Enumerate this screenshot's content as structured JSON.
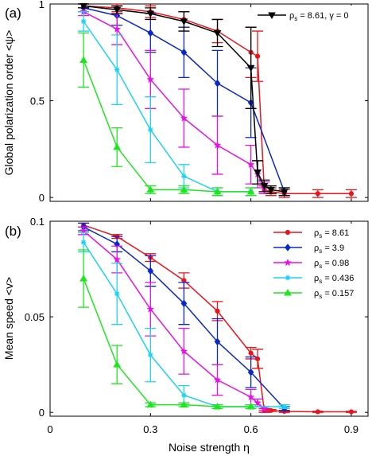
{
  "chart_data": [
    {
      "type": "line",
      "panel_label": "(a)",
      "ylabel": "Global polarization order <ψ>",
      "xlabel": "",
      "xlim": [
        0,
        0.95
      ],
      "ylim": [
        -0.02,
        1.0
      ],
      "xticks": [
        0,
        0.3,
        0.6,
        0.9
      ],
      "xtick_labels": [
        "",
        "",
        "",
        ""
      ],
      "yticks": [
        0,
        0.5,
        1
      ],
      "ytick_labels": [
        "0",
        "0.5",
        "1"
      ],
      "grid": false,
      "legend": {
        "position": "top-right",
        "entries": [
          {
            "prefix": "ρ",
            "sub": "s",
            "suffix": " = 8.61,   γ = 0",
            "color": "#000000",
            "marker": "triangle-down"
          }
        ]
      },
      "series": [
        {
          "name": "ρs = 8.61",
          "color": "#e8151b",
          "marker": "dot",
          "x": [
            0.1,
            0.2,
            0.3,
            0.4,
            0.5,
            0.6,
            0.62,
            0.64,
            0.66,
            0.7,
            0.8,
            0.9
          ],
          "y": [
            0.99,
            0.98,
            0.96,
            0.92,
            0.86,
            0.75,
            0.73,
            0.04,
            0.03,
            0.02,
            0.02,
            0.02
          ],
          "err": [
            0.01,
            0.02,
            0.03,
            0.04,
            0.06,
            0.13,
            0.13,
            0.02,
            0.02,
            0.02,
            0.02,
            0.02
          ]
        },
        {
          "name": "ρs = 3.9",
          "color": "#0a28c8",
          "marker": "diamond",
          "x": [
            0.1,
            0.2,
            0.3,
            0.4,
            0.5,
            0.6,
            0.7
          ],
          "y": [
            0.98,
            0.94,
            0.85,
            0.75,
            0.59,
            0.49,
            0.03
          ],
          "err": [
            0.02,
            0.05,
            0.1,
            0.13,
            0.17,
            0.18,
            0.02
          ]
        },
        {
          "name": "ρs = 0.98",
          "color": "#e612e6",
          "marker": "star",
          "x": [
            0.1,
            0.2,
            0.3,
            0.4,
            0.5,
            0.6,
            0.62,
            0.64
          ],
          "y": [
            0.96,
            0.87,
            0.61,
            0.41,
            0.27,
            0.17,
            0.12,
            0.05
          ],
          "err": [
            0.02,
            0.08,
            0.15,
            0.15,
            0.15,
            0.1,
            0.07,
            0.03
          ]
        },
        {
          "name": "ρs = 0.436",
          "color": "#1ed2f0",
          "marker": "asterisk",
          "x": [
            0.1,
            0.2,
            0.3,
            0.4,
            0.5,
            0.6
          ],
          "y": [
            0.91,
            0.66,
            0.35,
            0.11,
            0.03,
            0.03
          ],
          "err": [
            0.05,
            0.18,
            0.17,
            0.06,
            0.02,
            0.02
          ]
        },
        {
          "name": "ρs = 0.157",
          "color": "#1ee61e",
          "marker": "triangle-up",
          "x": [
            0.1,
            0.2,
            0.3,
            0.4,
            0.5,
            0.6
          ],
          "y": [
            0.71,
            0.26,
            0.04,
            0.04,
            0.03,
            0.03
          ],
          "err": [
            0.14,
            0.1,
            0.02,
            0.02,
            0.02,
            0.02
          ]
        },
        {
          "name": "ρs = 8.61, γ = 0",
          "color": "#000000",
          "marker": "triangle-down",
          "x": [
            0.1,
            0.2,
            0.3,
            0.4,
            0.5,
            0.6,
            0.62,
            0.64,
            0.66,
            0.7
          ],
          "y": [
            0.99,
            0.97,
            0.95,
            0.91,
            0.85,
            0.67,
            0.13,
            0.06,
            0.04,
            0.03
          ],
          "err": [
            0.01,
            0.02,
            0.03,
            0.05,
            0.07,
            0.21,
            0.06,
            0.03,
            0.02,
            0.02
          ]
        }
      ]
    },
    {
      "type": "line",
      "panel_label": "(b)",
      "ylabel": "Mean speed <v>",
      "xlabel": "Noise strength η",
      "xlim": [
        0,
        0.95
      ],
      "ylim": [
        -0.002,
        0.1
      ],
      "xticks": [
        0,
        0.3,
        0.6,
        0.9
      ],
      "xtick_labels": [
        "0",
        "0.3",
        "0.6",
        "0.9"
      ],
      "yticks": [
        0,
        0.05,
        0.1
      ],
      "ytick_labels": [
        "0",
        "0.05",
        "0.1"
      ],
      "grid": false,
      "legend": {
        "position": "top-right",
        "entries": [
          {
            "prefix": "ρ",
            "sub": "s",
            "suffix": " = 8.61",
            "color": "#e8151b",
            "marker": "dot"
          },
          {
            "prefix": "ρ",
            "sub": "s",
            "suffix": " = 3.9",
            "color": "#0a28c8",
            "marker": "diamond"
          },
          {
            "prefix": "ρ",
            "sub": "s",
            "suffix": " = 0.98",
            "color": "#e612e6",
            "marker": "star"
          },
          {
            "prefix": "ρ",
            "sub": "s",
            "suffix": " = 0.436",
            "color": "#1ed2f0",
            "marker": "asterisk"
          },
          {
            "prefix": "ρ",
            "sub": "s",
            "suffix": " = 0.157",
            "color": "#1ee61e",
            "marker": "triangle-up"
          }
        ]
      },
      "series": [
        {
          "name": "ρs = 8.61",
          "color": "#e8151b",
          "marker": "dot",
          "x": [
            0.1,
            0.2,
            0.3,
            0.4,
            0.5,
            0.6,
            0.62,
            0.64,
            0.66,
            0.7,
            0.8,
            0.9
          ],
          "y": [
            0.098,
            0.092,
            0.081,
            0.069,
            0.053,
            0.031,
            0.028,
            0.001,
            0.001,
            0.0005,
            0.0003,
            0.0003
          ],
          "err": [
            0.001,
            0.001,
            0.002,
            0.004,
            0.005,
            0.003,
            0.005,
            0.001,
            0.0005,
            0.0005,
            0.0003,
            0.0003
          ]
        },
        {
          "name": "ρs = 3.9",
          "color": "#0a28c8",
          "marker": "diamond",
          "x": [
            0.1,
            0.2,
            0.3,
            0.4,
            0.5,
            0.6,
            0.7
          ],
          "y": [
            0.097,
            0.088,
            0.074,
            0.057,
            0.037,
            0.021,
            0.002
          ],
          "err": [
            0.002,
            0.004,
            0.008,
            0.011,
            0.012,
            0.008,
            0.001
          ]
        },
        {
          "name": "ρs = 0.98",
          "color": "#e612e6",
          "marker": "star",
          "x": [
            0.1,
            0.2,
            0.3,
            0.4,
            0.5,
            0.6,
            0.62,
            0.64
          ],
          "y": [
            0.095,
            0.08,
            0.054,
            0.032,
            0.017,
            0.008,
            0.005,
            0.002
          ],
          "err": [
            0.002,
            0.007,
            0.014,
            0.012,
            0.008,
            0.004,
            0.002,
            0.001
          ]
        },
        {
          "name": "ρs = 0.436",
          "color": "#1ed2f0",
          "marker": "asterisk",
          "x": [
            0.1,
            0.2,
            0.3,
            0.4,
            0.5,
            0.6,
            0.7
          ],
          "y": [
            0.089,
            0.062,
            0.03,
            0.009,
            0.003,
            0.003,
            0.003
          ],
          "err": [
            0.005,
            0.016,
            0.014,
            0.005,
            0.001,
            0.001,
            0.001
          ]
        },
        {
          "name": "ρs = 0.157",
          "color": "#1ee61e",
          "marker": "triangle-up",
          "x": [
            0.1,
            0.2,
            0.3,
            0.4,
            0.5,
            0.6
          ],
          "y": [
            0.07,
            0.025,
            0.004,
            0.004,
            0.003,
            0.003
          ],
          "err": [
            0.015,
            0.01,
            0.001,
            0.001,
            0.001,
            0.001
          ]
        }
      ]
    }
  ]
}
